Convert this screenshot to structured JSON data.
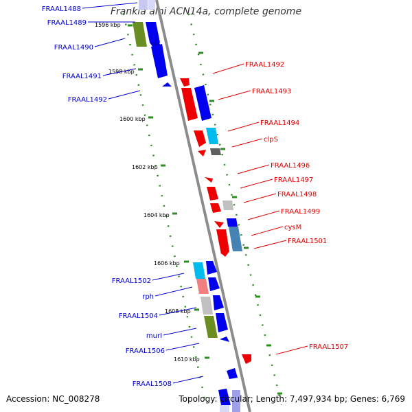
{
  "title": "Frankia alni ACN14a, complete genome",
  "footer": {
    "accession": "Accession: NC_008278",
    "summary": "Topology: circular; Length: 7,497,934 bp; Genes: 6,769"
  },
  "colors": {
    "backbone": "#8c8c8c",
    "dots": "#2e8b22",
    "left_label": "#0000cc",
    "right_label": "#e00000",
    "forward": "#0000ee",
    "reverse": "#ee0000"
  },
  "kbp_ticks": [
    "1596 kbp",
    "1598 kbp",
    "1600 kbp",
    "1602 kbp",
    "1604 kbp",
    "1606 kbp",
    "1608 kbp",
    "1610 kbp"
  ],
  "left_labels": [
    "FRAAL1488",
    "FRAAL1489",
    "FRAAL1490",
    "FRAAL1491",
    "FRAAL1492",
    "FRAAL1502",
    "rph",
    "FRAAL1504",
    "murI",
    "FRAAL1506",
    "FRAAL1508"
  ],
  "right_labels": [
    "FRAAL1492",
    "FRAAL1493",
    "FRAAL1494",
    "clpS",
    "FRAAL1496",
    "FRAAL1497",
    "FRAAL1498",
    "FRAAL1499",
    "cysM",
    "FRAAL1501",
    "FRAAL1507"
  ]
}
